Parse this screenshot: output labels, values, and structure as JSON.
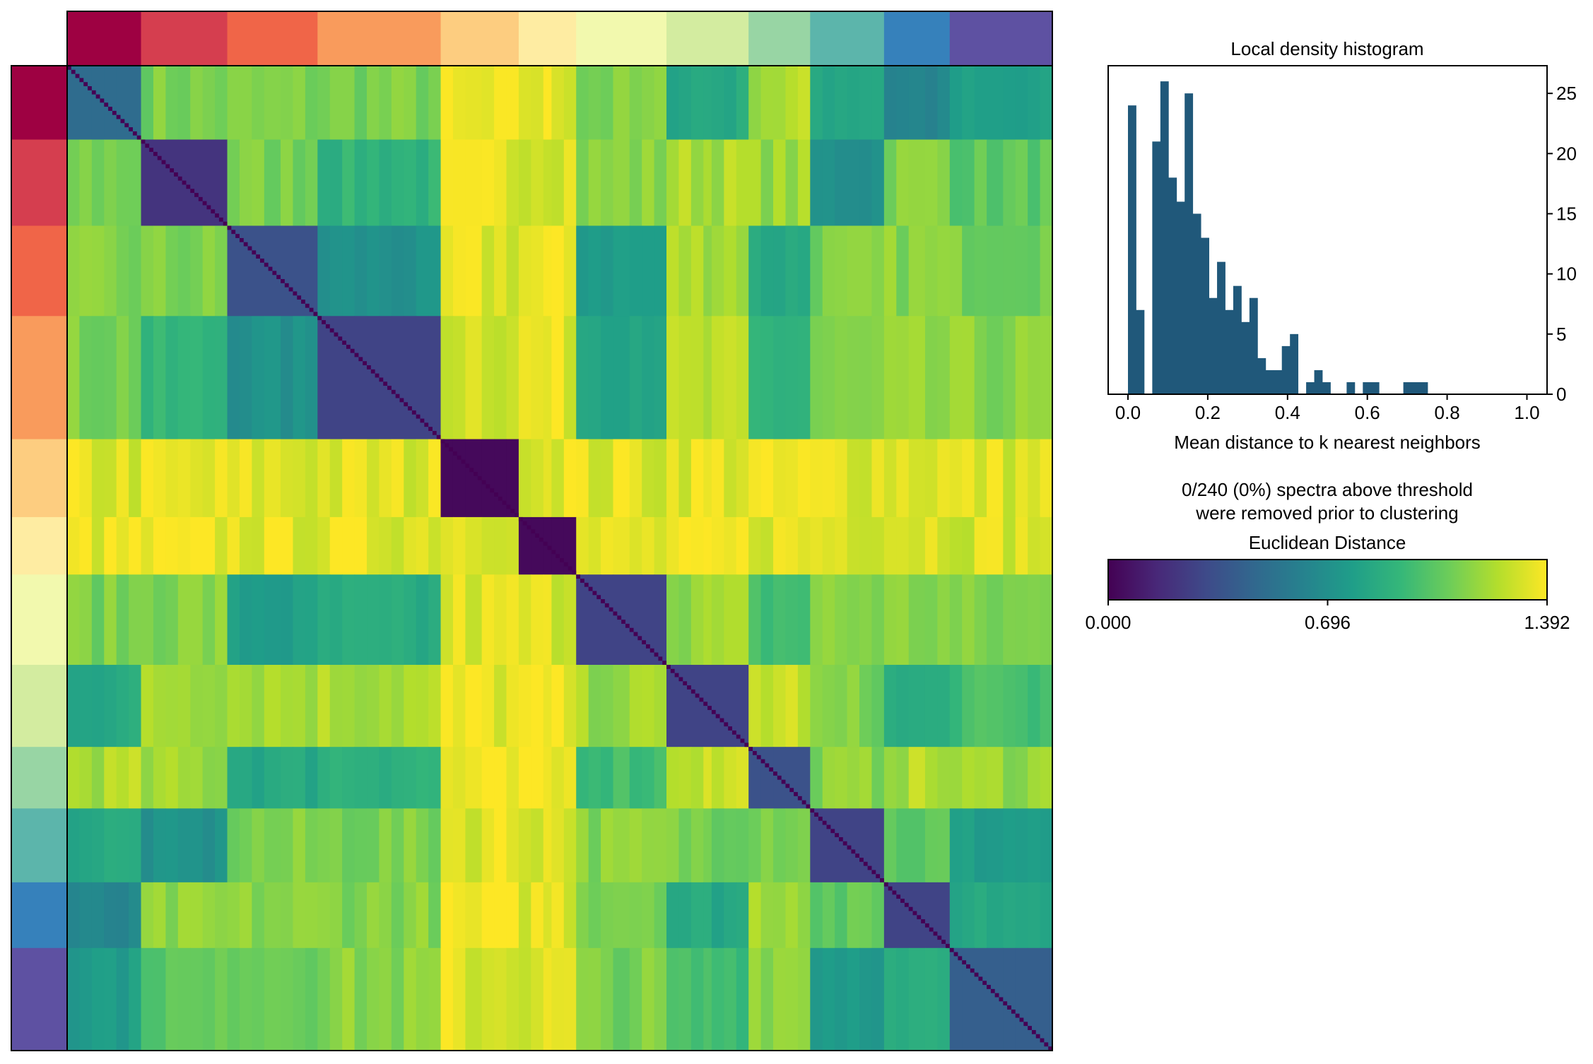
{
  "chart_data": [
    {
      "type": "heatmap",
      "colormap": "viridis",
      "n_spectra": 240,
      "cluster_sizes": [
        18,
        21,
        22,
        30,
        19,
        14,
        22,
        20,
        15,
        18,
        16,
        25
      ],
      "cluster_colors": [
        "#9e0142",
        "#d53e4f",
        "#f06548",
        "#f99b5c",
        "#fdcd80",
        "#feeca2",
        "#f2f9ae",
        "#d3eca0",
        "#98d5a4",
        "#5cb5ab",
        "#3681bb",
        "#5e51a2"
      ],
      "value_range": [
        0.0,
        1.392
      ],
      "block_mean_distance": [
        [
          0.49,
          1.11,
          1.11,
          1.11,
          1.32,
          1.34,
          1.11,
          0.84,
          1.22,
          0.84,
          0.63,
          0.77
        ],
        [
          1.11,
          0.21,
          1.11,
          0.9,
          1.32,
          1.34,
          1.14,
          1.22,
          1.18,
          0.7,
          1.14,
          1.04
        ],
        [
          1.11,
          1.11,
          0.35,
          0.7,
          1.32,
          1.34,
          0.77,
          1.22,
          0.84,
          1.11,
          1.14,
          1.11
        ],
        [
          1.11,
          0.9,
          0.7,
          0.28,
          1.32,
          1.34,
          0.84,
          1.22,
          0.9,
          1.11,
          1.14,
          1.14
        ],
        [
          1.32,
          1.32,
          1.32,
          1.32,
          0.03,
          1.36,
          1.32,
          1.34,
          1.34,
          1.34,
          1.34,
          1.32
        ],
        [
          1.34,
          1.34,
          1.34,
          1.34,
          1.36,
          0.03,
          1.32,
          1.34,
          1.34,
          1.34,
          1.34,
          1.32
        ],
        [
          1.11,
          1.14,
          0.77,
          0.84,
          1.32,
          1.32,
          0.28,
          1.18,
          0.97,
          1.14,
          1.14,
          1.11
        ],
        [
          0.84,
          1.22,
          1.22,
          1.22,
          1.34,
          1.34,
          1.18,
          0.28,
          1.28,
          1.11,
          0.84,
          0.97
        ],
        [
          1.22,
          1.18,
          0.84,
          0.9,
          1.34,
          1.34,
          0.97,
          1.28,
          0.35,
          1.14,
          1.22,
          1.18
        ],
        [
          0.84,
          0.7,
          1.11,
          1.11,
          1.34,
          1.34,
          1.14,
          1.11,
          1.14,
          0.28,
          1.04,
          0.77
        ],
        [
          0.63,
          1.14,
          1.14,
          1.14,
          1.34,
          1.34,
          1.14,
          0.84,
          1.22,
          1.04,
          0.28,
          0.84
        ],
        [
          0.77,
          1.04,
          1.11,
          1.14,
          1.32,
          1.32,
          1.11,
          0.97,
          1.18,
          0.77,
          0.84,
          0.42
        ]
      ]
    },
    {
      "type": "bar",
      "title": "Local density histogram",
      "xlabel": "Mean distance to k nearest neighbors",
      "ylabel": "",
      "bar_color": "#20587a",
      "bin_width": 0.0203,
      "bin_start": 0.0,
      "counts": [
        24,
        7,
        0,
        21,
        26,
        18,
        16,
        25,
        15,
        13,
        8,
        11,
        7,
        9,
        6,
        8,
        3,
        2,
        2,
        4,
        5,
        0,
        1,
        2,
        1,
        0,
        0,
        1,
        0,
        1,
        1,
        0,
        0,
        0,
        1,
        1,
        1
      ],
      "xlim": [
        -0.05,
        1.05
      ],
      "ylim": [
        0,
        27.3
      ],
      "xticks": [
        "0.0",
        "0.2",
        "0.4",
        "0.6",
        "0.8",
        "1.0"
      ],
      "yticks": [
        "0",
        "5",
        "10",
        "15",
        "20",
        "25"
      ],
      "y_axis_side": "right"
    },
    {
      "type": "colorbar",
      "colormap": "viridis",
      "label": "Euclidean Distance",
      "ticks": [
        "0.000",
        "0.696",
        "1.392"
      ]
    }
  ],
  "annotation": {
    "line1": "0/240 (0%) spectra above threshold",
    "line2": "were removed prior to clustering"
  }
}
